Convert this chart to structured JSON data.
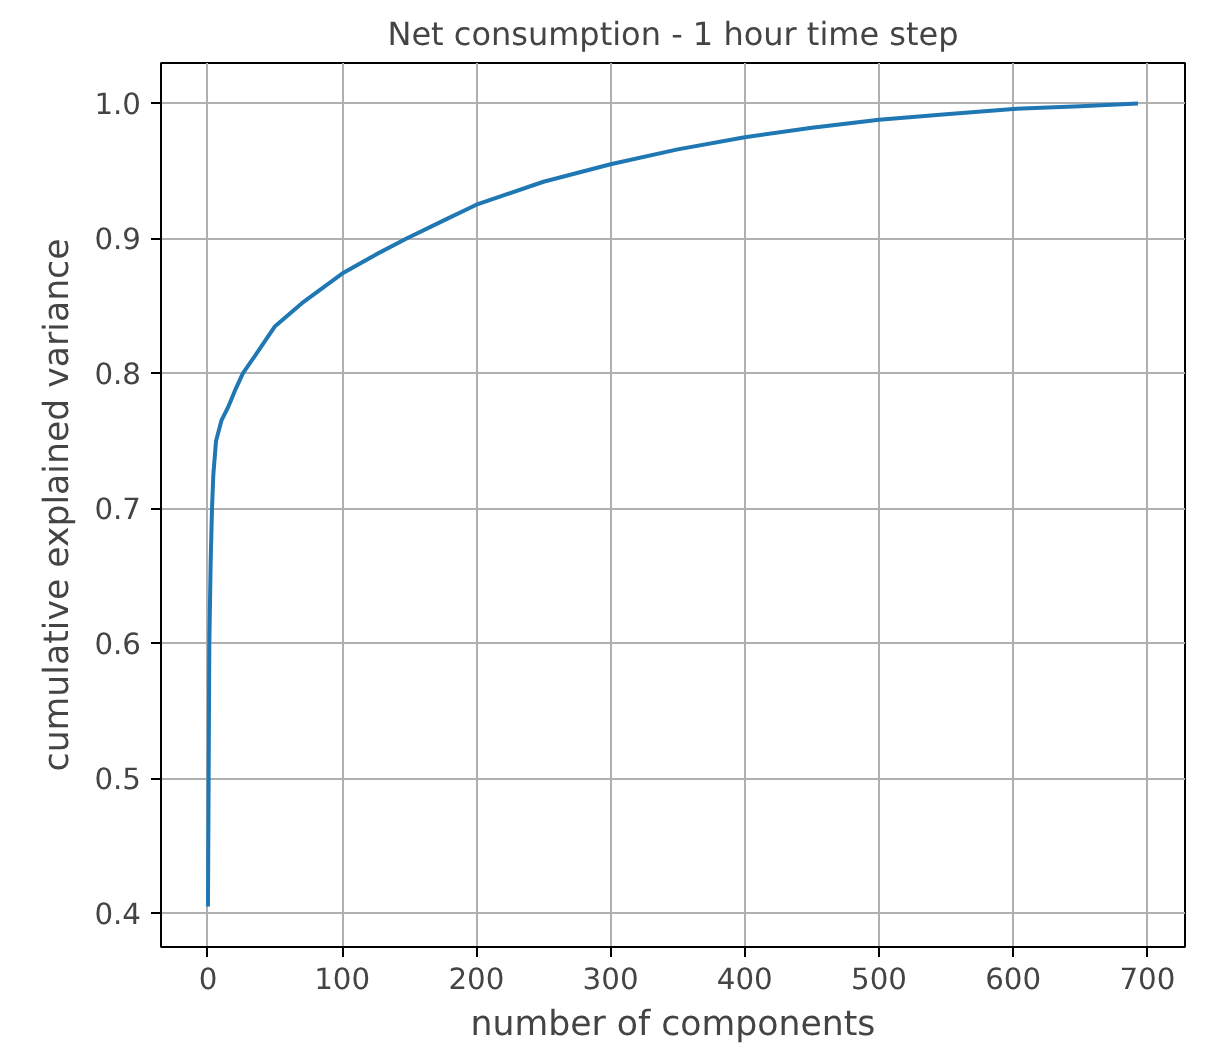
{
  "chart_data": {
    "type": "line",
    "title": "Net consumption - 1 hour time step",
    "xlabel": "number of components",
    "ylabel": "cumulative explained variance",
    "x": [
      0,
      1,
      2,
      3,
      4,
      6,
      10,
      15,
      20,
      26,
      35,
      50,
      70,
      100,
      125,
      148,
      175,
      200,
      250,
      300,
      350,
      400,
      450,
      500,
      550,
      600,
      650,
      693
    ],
    "series": [
      {
        "color": "#1f77b4",
        "values": [
          0.405,
          0.6,
          0.66,
          0.7,
          0.725,
          0.75,
          0.765,
          0.775,
          0.787,
          0.8,
          0.813,
          0.835,
          0.852,
          0.874,
          0.888,
          0.9,
          0.913,
          0.925,
          0.942,
          0.955,
          0.966,
          0.975,
          0.982,
          0.988,
          0.992,
          0.996,
          0.998,
          1.0
        ]
      }
    ],
    "xlim": [
      -35,
      728
    ],
    "ylim": [
      0.375,
      1.03
    ],
    "xticks": [
      0,
      100,
      200,
      300,
      400,
      500,
      600,
      700
    ],
    "yticks": [
      {
        "value": 0.4,
        "label": "0.4"
      },
      {
        "value": 0.5,
        "label": "0.5"
      },
      {
        "value": 0.6,
        "label": "0.6"
      },
      {
        "value": 0.7,
        "label": "0.7"
      },
      {
        "value": 0.8,
        "label": "0.8"
      },
      {
        "value": 0.9,
        "label": "0.9"
      },
      {
        "value": 1.0,
        "label": "1.0"
      }
    ],
    "grid": true,
    "line_style": "solid",
    "marker": "none"
  }
}
